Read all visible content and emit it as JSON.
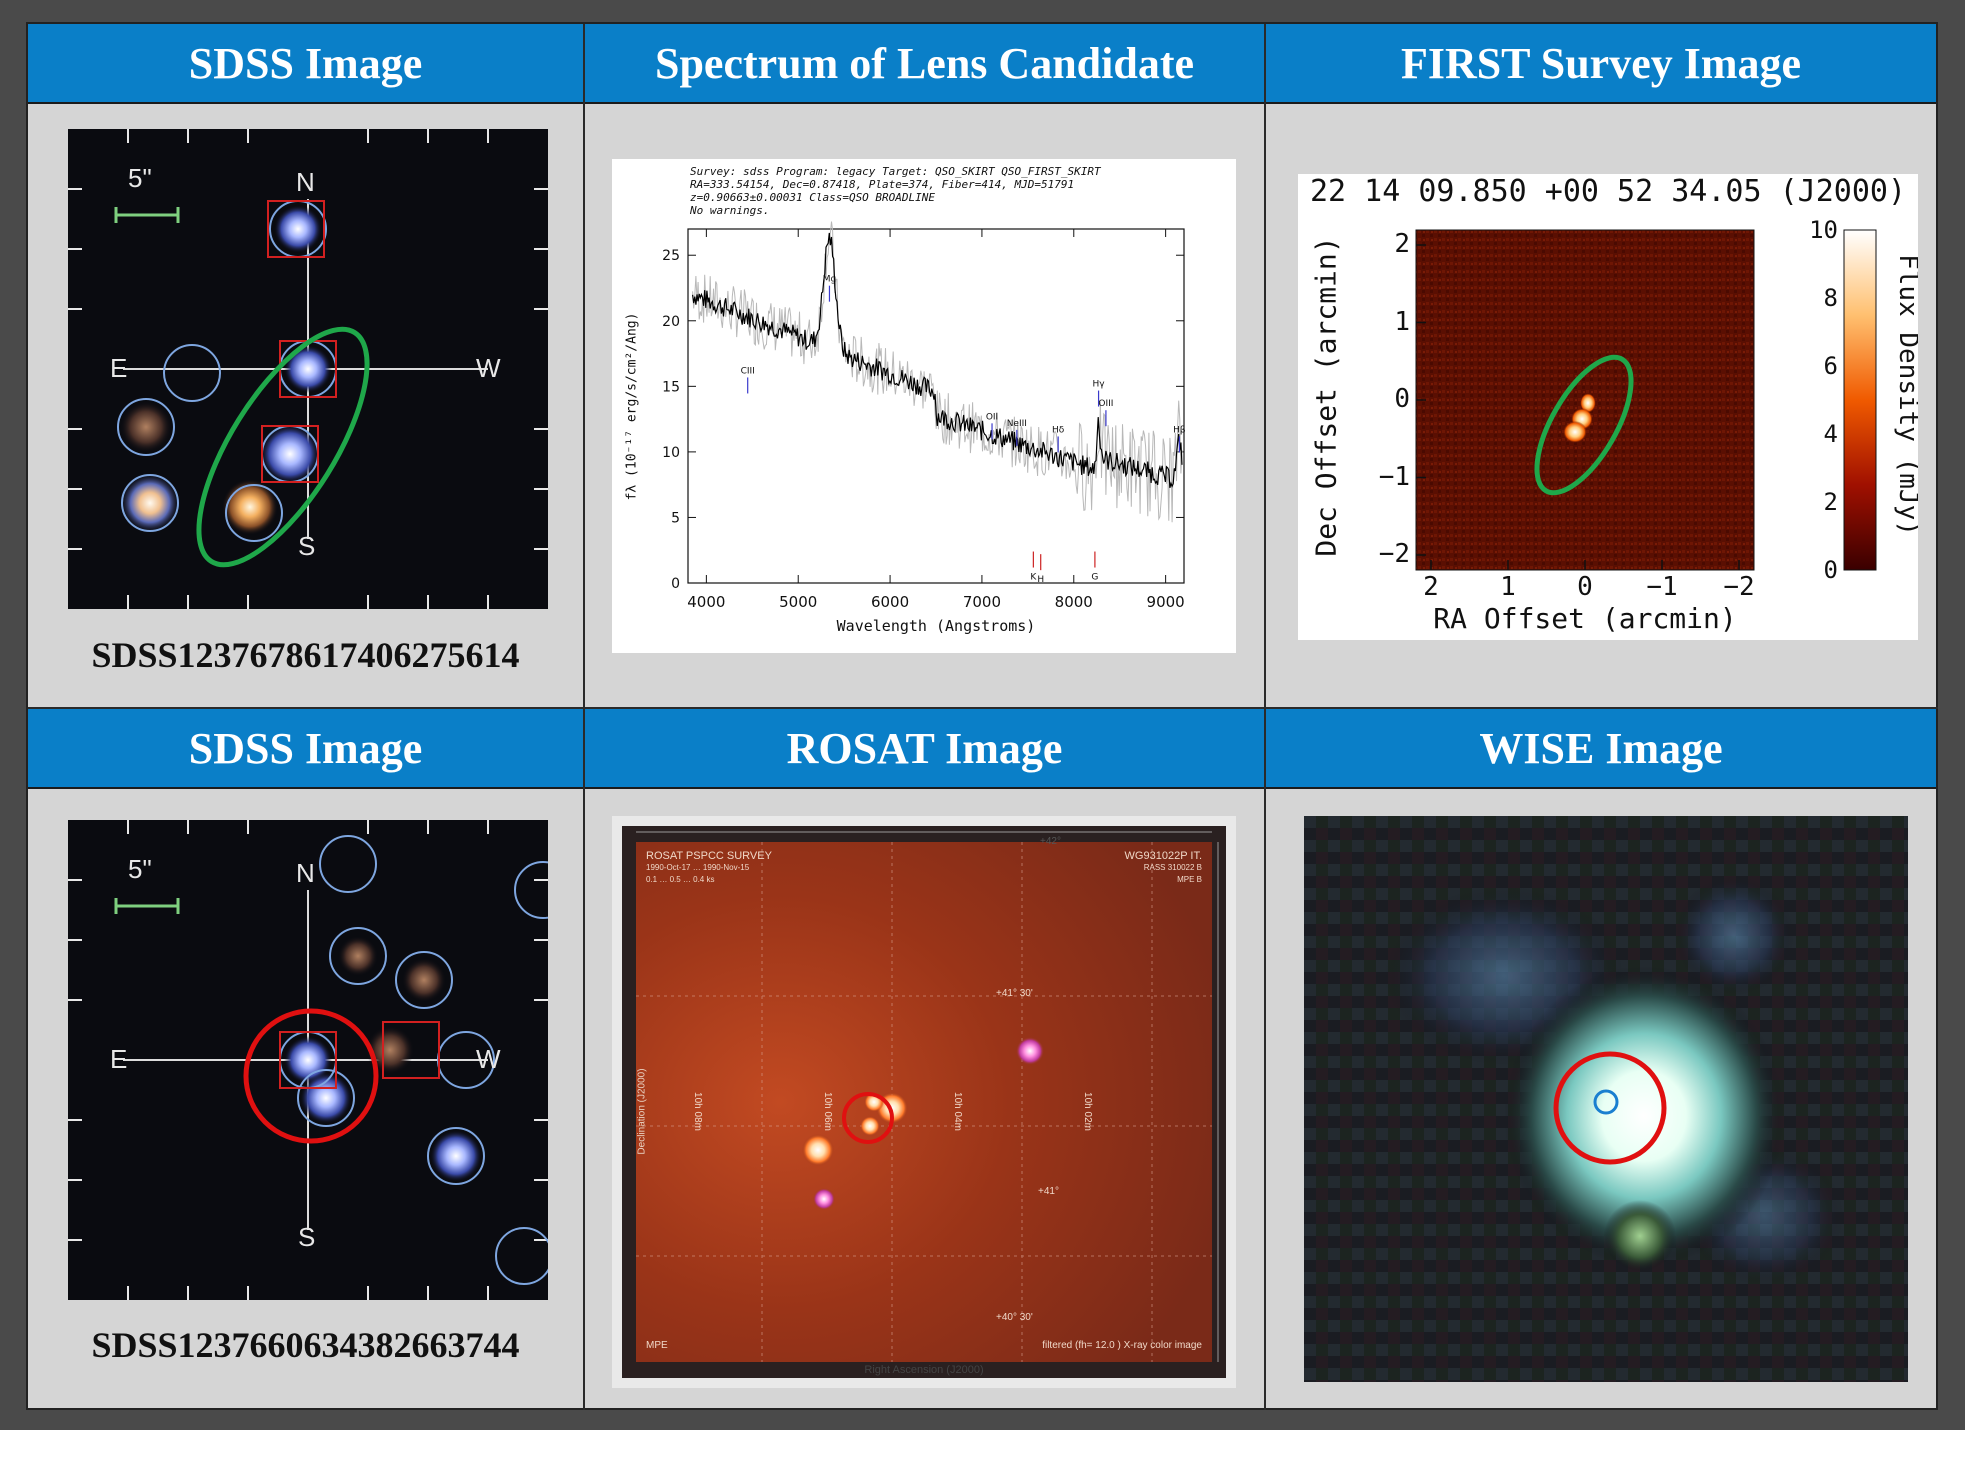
{
  "headers": {
    "r1c1": "SDSS Image",
    "r1c2": "Spectrum of Lens Candidate",
    "r1c3": "FIRST Survey Image",
    "r2c1": "SDSS Image",
    "r2c2": "ROSAT Image",
    "r2c3": "WISE Image"
  },
  "sdss1": {
    "scale": "5\"",
    "compass": {
      "n": "N",
      "e": "E",
      "w": "W",
      "s": "S"
    },
    "objid": "SDSS1237678617406275614"
  },
  "sdss2": {
    "scale": "5\"",
    "compass": {
      "n": "N",
      "e": "E",
      "w": "W",
      "s": "S"
    },
    "objid": "SDSS1237660634382663744"
  },
  "spectrum": {
    "info_line1": "Survey: sdss  Program: legacy  Target: QSO_SKIRT QSO_FIRST_SKIRT",
    "info_line2": "RA=333.54154, Dec=0.87418, Plate=374, Fiber=414, MJD=51791",
    "info_line3": "z=0.90663±0.00031  Class=QSO BROADLINE",
    "info_line4": "No warnings.",
    "xlabel": "Wavelength (Angstroms)",
    "ylabel": "fλ (10⁻¹⁷ erg/s/cm²/Ang)",
    "xticks": [
      "4000",
      "5000",
      "6000",
      "7000",
      "8000",
      "9000"
    ],
    "yticks": [
      "0",
      "5",
      "10",
      "15",
      "20",
      "25"
    ],
    "lines": {
      "ciii": "CIII",
      "mg": "Mg",
      "oii": "OII",
      "neiii": "NeIII",
      "hd": "Hδ",
      "hg": "Hγ",
      "oiii": "OIII",
      "hb": "Hβ",
      "k": "K",
      "h": "H",
      "g": "G"
    }
  },
  "first": {
    "coords": "22 14 09.850 +00 52 34.05 (J2000)",
    "xlabel": "RA Offset (arcmin)",
    "ylabel": "Dec Offset (arcmin)",
    "cbar_label": "Flux Density (mJy)",
    "xticks": [
      "2",
      "1",
      "0",
      "−1",
      "−2"
    ],
    "yticks": [
      "2",
      "1",
      "0",
      "−1",
      "−2"
    ],
    "cticks": [
      "10",
      "8",
      "6",
      "4",
      "2",
      "0"
    ]
  },
  "rosat": {
    "title": "ROSAT PSPCC SURVEY",
    "subtitle": "1990-Oct-17 … 1990-Nov-15",
    "band": "0.1 … 0.5 … 0.4 ks",
    "field_id": "WG931022P IT.",
    "field_sub1": "RASS 310022 B",
    "field_sub2": "MPE B",
    "dec_label": "Declination (J2000)",
    "ra_label": "Right Ascension (J2000)",
    "footer_left": "MPE",
    "footer_right": "filtered (fh= 12.0 ) X-ray color image",
    "grid_labels": {
      "d1": "+41° 30'",
      "d2": "+41°",
      "d3": "+40° 30'",
      "top": "+42°",
      "r1": "10h 08m",
      "r2": "10h 06m",
      "r3": "10h 04m",
      "r4": "10h 02m"
    }
  },
  "colors": {
    "header_bg": "#0a7fc8",
    "cell_bg": "#d5d5d5",
    "frame": "#4a4a4a",
    "lens_ellipse": "#1fa84a",
    "target_circle": "#e01010",
    "marker_circle": "#7ea6e0",
    "marker_square": "#d22020"
  }
}
